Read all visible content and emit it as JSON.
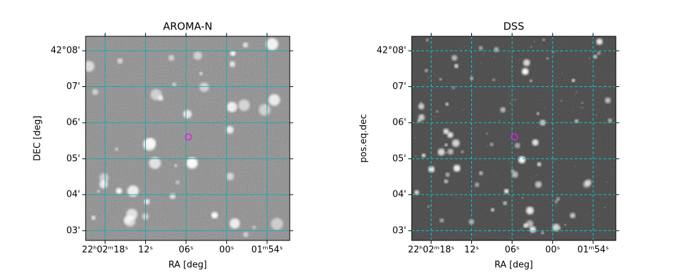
{
  "chart_data": [
    {
      "type": "image",
      "title": "AROMA-N",
      "xlabel": "RA [deg]",
      "ylabel": "DEC [deg]",
      "xlim": [
        330.587,
        330.461
      ],
      "ylim": [
        42.0455,
        42.14
      ],
      "xticks": [
        {
          "value": 330.575,
          "label": "22ʰ02ᵐ18ˢ"
        },
        {
          "value": 330.55,
          "label": "12ˢ"
        },
        {
          "value": 330.525,
          "label": "06ˢ"
        },
        {
          "value": 330.5,
          "label": "00ˢ"
        },
        {
          "value": 330.475,
          "label": "01ᵐ54ˢ"
        }
      ],
      "yticks": [
        {
          "value": 42.05,
          "label": "03'"
        },
        {
          "value": 42.0667,
          "label": "04'"
        },
        {
          "value": 42.0833,
          "label": "05'"
        },
        {
          "value": 42.1,
          "label": "06'"
        },
        {
          "value": 42.1167,
          "label": "07'"
        },
        {
          "value": 42.1333,
          "label": "42°08'"
        }
      ],
      "grid": true,
      "grid_style": "solid",
      "grid_color": "#1fa8a8"
    },
    {
      "type": "image",
      "title": "DSS",
      "xlabel": "RA [deg]",
      "ylabel": "pos.eq.dec",
      "xlim": [
        330.587,
        330.461
      ],
      "ylim": [
        42.0455,
        42.14
      ],
      "xticks": [
        {
          "value": 330.575,
          "label": "22ʰ02ᵐ18ˢ"
        },
        {
          "value": 330.55,
          "label": "12ˢ"
        },
        {
          "value": 330.525,
          "label": "06ˢ"
        },
        {
          "value": 330.5,
          "label": "00ˢ"
        },
        {
          "value": 330.475,
          "label": "01ᵐ54ˢ"
        }
      ],
      "yticks": [
        {
          "value": 42.05,
          "label": "03'"
        },
        {
          "value": 42.0667,
          "label": "04'"
        },
        {
          "value": 42.0833,
          "label": "05'"
        },
        {
          "value": 42.1,
          "label": "06'"
        },
        {
          "value": 42.1167,
          "label": "07'"
        },
        {
          "value": 42.1333,
          "label": "42°08'"
        }
      ],
      "grid": true,
      "grid_style": "dashed",
      "grid_color": "#00d0d0"
    }
  ]
}
